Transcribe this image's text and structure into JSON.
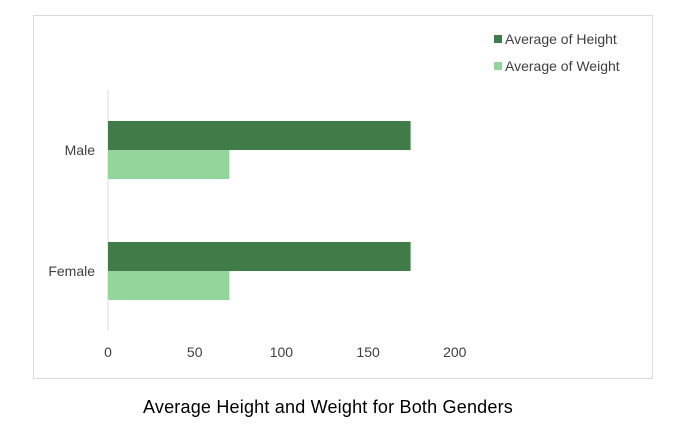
{
  "chart_data": {
    "type": "bar",
    "orientation": "horizontal",
    "categories": [
      "Male",
      "Female"
    ],
    "series": [
      {
        "name": "Average of Height",
        "values": [
          174.5,
          174.5
        ],
        "color": "#3f7c47"
      },
      {
        "name": "Average of Weight",
        "values": [
          70,
          70
        ],
        "color": "#93d59a"
      }
    ],
    "xlim": [
      0,
      200
    ],
    "xticks": [
      0,
      50,
      100,
      150,
      200
    ],
    "grid": false,
    "legend_position": "top-right",
    "title": "",
    "xlabel": "",
    "ylabel": ""
  },
  "caption": "Average Height and Weight for Both Genders"
}
